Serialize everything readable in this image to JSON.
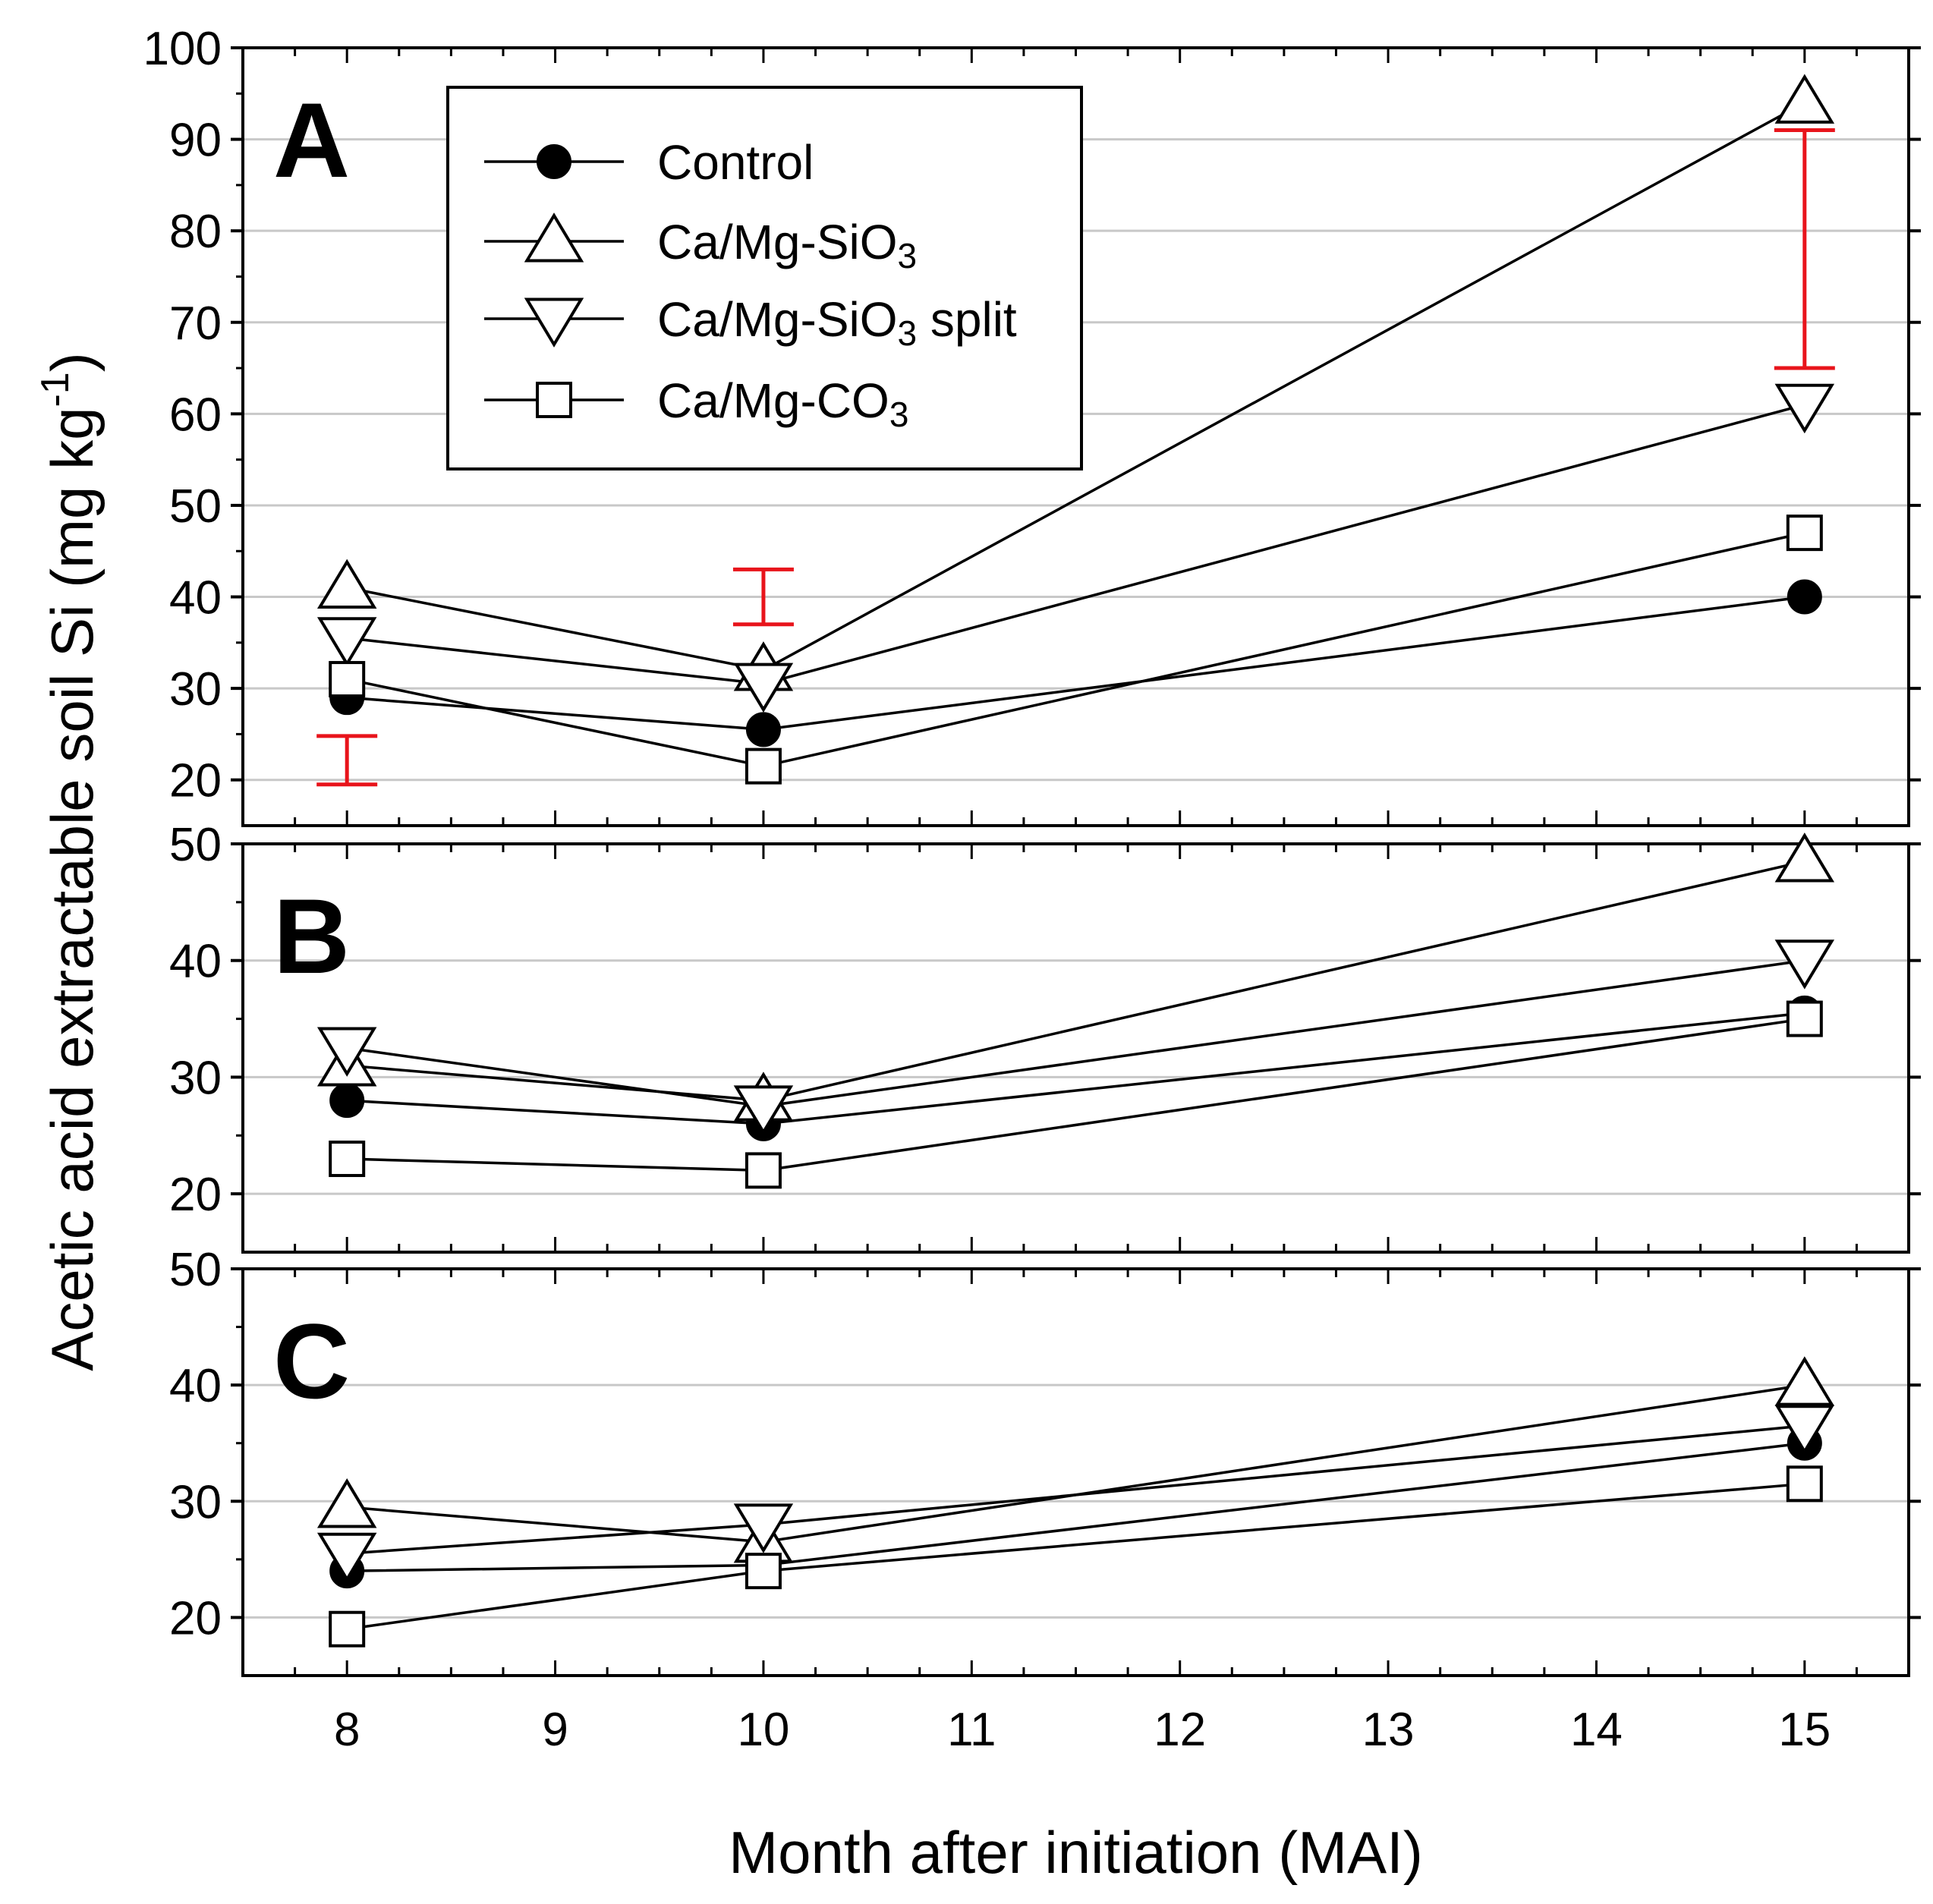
{
  "chart_data": {
    "type": "line",
    "xlabel": "Month after initiation (MAI)",
    "ylabel": "Acetic acid extractable soil Si (mg kg",
    "ylabel_sup": "-1",
    "ylabel_close": ")",
    "xlim": [
      7.5,
      15.5
    ],
    "xticks": [
      8,
      9,
      10,
      11,
      12,
      13,
      14,
      15
    ],
    "x": [
      8,
      10,
      15
    ],
    "legend": {
      "placement": "top-left inside panel A",
      "entries": [
        {
          "series": "control",
          "label": "Control",
          "marker": "filled-circle"
        },
        {
          "series": "sio3",
          "label": "Ca/Mg-SiO",
          "sub": "3",
          "suffix": "",
          "marker": "triangle-up"
        },
        {
          "series": "sio3split",
          "label": "Ca/Mg-SiO",
          "sub": "3",
          "suffix": " split",
          "marker": "triangle-down"
        },
        {
          "series": "co3",
          "label": "Ca/Mg-CO",
          "sub": "3",
          "suffix": "",
          "marker": "square"
        }
      ]
    },
    "panels": [
      {
        "label": "A",
        "ylim": [
          15,
          100
        ],
        "yticks": [
          20,
          30,
          40,
          50,
          60,
          70,
          80,
          90,
          100
        ],
        "series": [
          {
            "key": "control",
            "name": "Control",
            "marker": "filled-circle",
            "values": [
              29,
              25.5,
              40
            ]
          },
          {
            "key": "sio3",
            "name": "Ca/Mg-SiO3",
            "marker": "triangle-up",
            "values": [
              41,
              32,
              94
            ]
          },
          {
            "key": "sio3split",
            "name": "Ca/Mg-SiO3 split",
            "marker": "triangle-down",
            "values": [
              35.5,
              30.5,
              61
            ]
          },
          {
            "key": "co3",
            "name": "Ca/Mg-CO3",
            "marker": "square",
            "values": [
              31,
              21.5,
              47
            ]
          }
        ],
        "error_bars": [
          {
            "x": 8,
            "low": 19.5,
            "high": 24.8
          },
          {
            "x": 10,
            "low": 37,
            "high": 43
          },
          {
            "x": 15,
            "low": 65,
            "high": 91
          }
        ],
        "error_bar_color": "#e8141b"
      },
      {
        "label": "B",
        "ylim": [
          15,
          50
        ],
        "yticks": [
          20,
          30,
          40,
          50
        ],
        "series": [
          {
            "key": "control",
            "name": "Control",
            "marker": "filled-circle",
            "values": [
              28,
              26,
              35.5
            ]
          },
          {
            "key": "sio3",
            "name": "Ca/Mg-SiO3",
            "marker": "triangle-up",
            "values": [
              31,
              28,
              48.5
            ]
          },
          {
            "key": "sio3split",
            "name": "Ca/Mg-SiO3 split",
            "marker": "triangle-down",
            "values": [
              32.5,
              27.5,
              40
            ]
          },
          {
            "key": "co3",
            "name": "Ca/Mg-CO3",
            "marker": "square",
            "values": [
              23,
              22,
              35
            ]
          }
        ]
      },
      {
        "label": "C",
        "ylim": [
          15,
          50
        ],
        "yticks": [
          20,
          30,
          40,
          50
        ],
        "series": [
          {
            "key": "control",
            "name": "Control",
            "marker": "filled-circle",
            "values": [
              24,
              24.5,
              35
            ]
          },
          {
            "key": "sio3",
            "name": "Ca/Mg-SiO3",
            "marker": "triangle-up",
            "values": [
              29.5,
              26.5,
              40
            ]
          },
          {
            "key": "sio3split",
            "name": "Ca/Mg-SiO3 split",
            "marker": "triangle-down",
            "values": [
              25.5,
              28,
              36.5
            ]
          },
          {
            "key": "co3",
            "name": "Ca/Mg-CO3",
            "marker": "square",
            "values": [
              19,
              24,
              31.5
            ]
          }
        ]
      }
    ]
  }
}
